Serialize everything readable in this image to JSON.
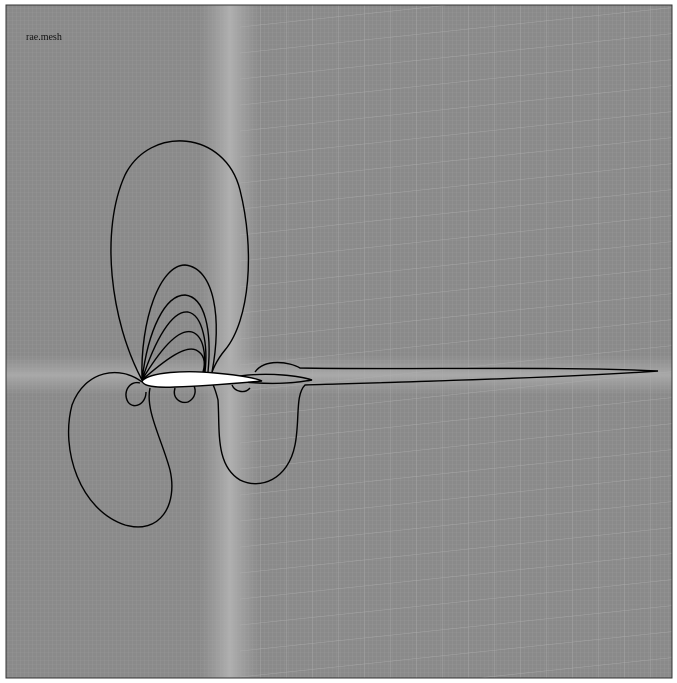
{
  "label": "rae.mesh"
}
